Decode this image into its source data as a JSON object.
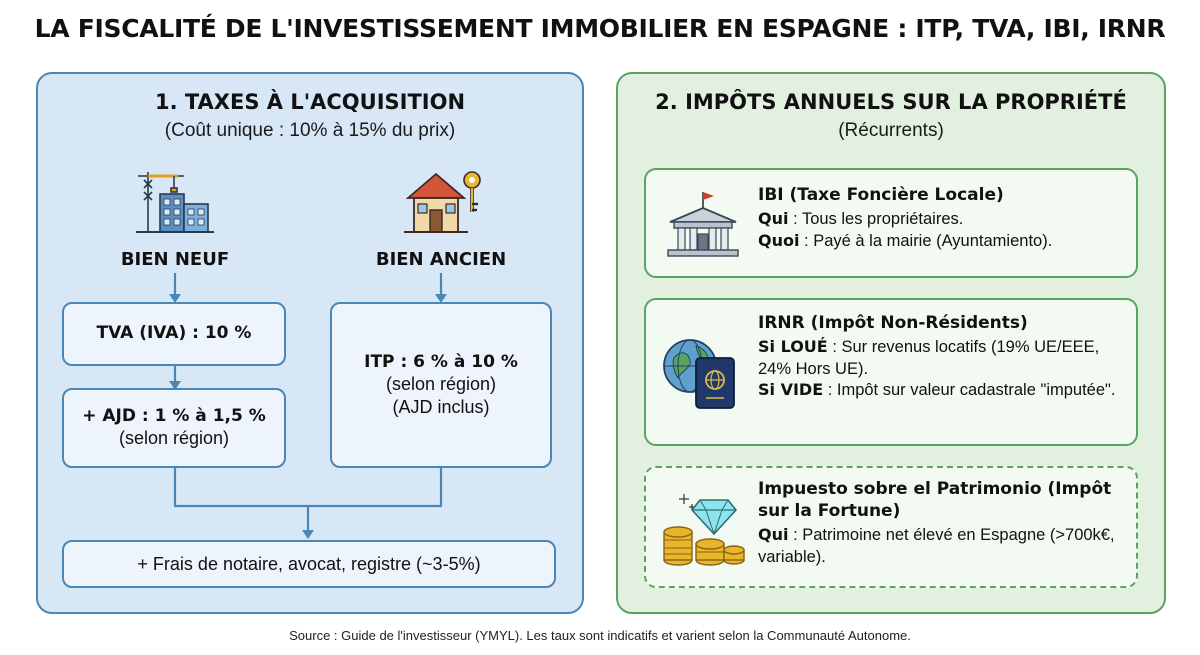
{
  "title": "LA FISCALITÉ DE L'INVESTISSEMENT IMMOBILIER EN ESPAGNE : ITP, TVA, IBI, IRNR",
  "left_panel": {
    "heading": "1. TAXES À L'ACQUISITION",
    "subheading": "(Coût unique : 10% à 15% du prix)",
    "new_property": {
      "icon": "construction-building-icon",
      "label": "BIEN NEUF",
      "vat_box": "TVA (IVA) : 10 %",
      "ajd_box_bold": "+ AJD : 1 % à 1,5 %",
      "ajd_box_note": "(selon région)"
    },
    "old_property": {
      "icon": "house-key-icon",
      "label": "BIEN ANCIEN",
      "itp_bold": "ITP : 6 % à 10 %",
      "itp_note1": "(selon région)",
      "itp_note2": "(AJD inclus)"
    },
    "fees_box": "+ Frais de notaire, avocat, registre (~3-5%)"
  },
  "right_panel": {
    "heading": "2. IMPÔTS ANNUELS SUR LA PROPRIÉTÉ",
    "subheading": "(Récurrents)",
    "ibi": {
      "icon": "town-hall-icon",
      "title": "IBI (Taxe Foncière Locale)",
      "who_key": "Qui",
      "who_value": " : Tous les propriétaires.",
      "what_key": "Quoi",
      "what_value": " : Payé à la mairie (Ayuntamiento)."
    },
    "irnr": {
      "icon": "globe-passport-icon",
      "title": "IRNR (Impôt Non-Résidents)",
      "rented_key": "Si LOUÉ",
      "rented_value": " : Sur revenus locatifs (19% UE/EEE, 24% Hors UE).",
      "empty_key": "Si VIDE",
      "empty_value": " : Impôt sur valeur cadastrale \"imputée\"."
    },
    "patrimonio": {
      "icon": "coins-diamond-icon",
      "title": "Impuesto sobre el Patrimonio (Impôt sur la Fortune)",
      "who_key": "Qui",
      "who_value": " : Patrimoine net élevé en Espagne (>700k€, variable)."
    }
  },
  "source": "Source : Guide de l'investisseur (YMYL). Les taux sont indicatifs et varient selon la Communauté Autonome.",
  "colors": {
    "left_bg": "#d7e7f6",
    "left_border": "#4a86b6",
    "right_bg": "#e2f1df",
    "right_border": "#5aa460"
  }
}
